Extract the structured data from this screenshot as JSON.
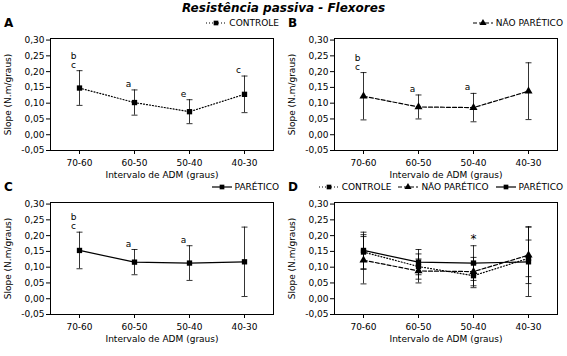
{
  "title": "Resistência passiva - Flexores",
  "chart_data": [
    {
      "type": "line",
      "title": "A",
      "categories": [
        "70-60",
        "60-50",
        "50-40",
        "40-30"
      ],
      "xlabel": "Intervalo de ADM (graus)",
      "ylabel": "Slope (N.m/graus)",
      "ylim": [
        -0.05,
        0.305
      ],
      "yticks": [
        {
          "value": -0.05,
          "label": "-0,05"
        },
        {
          "value": 0.0,
          "label": "0,00"
        },
        {
          "value": 0.05,
          "label": "0,05"
        },
        {
          "value": 0.1,
          "label": "0,10"
        },
        {
          "value": 0.15,
          "label": "0,15"
        },
        {
          "value": 0.2,
          "label": "0,20"
        },
        {
          "value": 0.25,
          "label": "0,25"
        },
        {
          "value": 0.3,
          "label": "0,30"
        }
      ],
      "legend": "right",
      "series": [
        {
          "name": "CONTROLE",
          "color": "black",
          "line_style": "dotted",
          "marker": "square",
          "values": [
            0.148,
            0.102,
            0.073,
            0.128
          ],
          "errors": [
            0.055,
            0.04,
            0.038,
            0.058
          ],
          "point_labels": [
            "b\nc",
            "a",
            "e",
            "c"
          ]
        }
      ]
    },
    {
      "type": "line",
      "title": "B",
      "categories": [
        "70-60",
        "60-50",
        "50-40",
        "40-30"
      ],
      "xlabel": "Intervalo de ADM (graus)",
      "ylabel": "Slope (N.m/graus)",
      "ylim": [
        -0.05,
        0.305
      ],
      "yticks": [
        {
          "value": -0.05,
          "label": "-0,05"
        },
        {
          "value": 0.0,
          "label": "0,00"
        },
        {
          "value": 0.05,
          "label": "0,05"
        },
        {
          "value": 0.1,
          "label": "0,10"
        },
        {
          "value": 0.15,
          "label": "0,15"
        },
        {
          "value": 0.2,
          "label": "0,20"
        },
        {
          "value": 0.25,
          "label": "0,25"
        },
        {
          "value": 0.3,
          "label": "0,30"
        }
      ],
      "legend": "right",
      "series": [
        {
          "name": "NÃO PARÉTICO",
          "color": "black",
          "line_style": "dashed",
          "marker": "triangle",
          "values": [
            0.122,
            0.088,
            0.086,
            0.138
          ],
          "errors": [
            0.075,
            0.038,
            0.045,
            0.09
          ],
          "point_labels": [
            "b\nc",
            "a",
            "a",
            null
          ]
        }
      ]
    },
    {
      "type": "line",
      "title": "C",
      "categories": [
        "70-60",
        "60-50",
        "50-40",
        "40-30"
      ],
      "xlabel": "Intervalo de ADM (graus)",
      "ylabel": "Slope (N.m/graus)",
      "ylim": [
        -0.05,
        0.305
      ],
      "yticks": [
        {
          "value": -0.05,
          "label": "-0,05"
        },
        {
          "value": 0.0,
          "label": "0,00"
        },
        {
          "value": 0.05,
          "label": "0,05"
        },
        {
          "value": 0.1,
          "label": "0,10"
        },
        {
          "value": 0.15,
          "label": "0,15"
        },
        {
          "value": 0.2,
          "label": "0,20"
        },
        {
          "value": 0.25,
          "label": "0,25"
        },
        {
          "value": 0.3,
          "label": "0,30"
        }
      ],
      "legend": "right",
      "series": [
        {
          "name": "PARÉTICO",
          "color": "black",
          "line_style": "solid",
          "marker": "square",
          "values": [
            0.153,
            0.116,
            0.113,
            0.117
          ],
          "errors": [
            0.058,
            0.04,
            0.055,
            0.11
          ],
          "point_labels": [
            "b\nc",
            "a",
            "a",
            null
          ]
        }
      ]
    },
    {
      "type": "line",
      "title": "D",
      "categories": [
        "70-60",
        "60-50",
        "50-40",
        "40-30"
      ],
      "xlabel": "Intervalo de ADM (graus)",
      "ylabel": "Slope (N.m/graus)",
      "ylim": [
        -0.05,
        0.305
      ],
      "yticks": [
        {
          "value": -0.05,
          "label": "-0,05"
        },
        {
          "value": 0.0,
          "label": "0,00"
        },
        {
          "value": 0.05,
          "label": "0,05"
        },
        {
          "value": 0.1,
          "label": "0,10"
        },
        {
          "value": 0.15,
          "label": "0,15"
        },
        {
          "value": 0.2,
          "label": "0,20"
        },
        {
          "value": 0.25,
          "label": "0,25"
        },
        {
          "value": 0.3,
          "label": "0,30"
        }
      ],
      "legend": "upper right",
      "series": [
        {
          "name": "CONTROLE",
          "color": "black",
          "line_style": "dotted",
          "marker": "square",
          "values": [
            0.148,
            0.102,
            0.073,
            0.128
          ],
          "errors": [
            0.055,
            0.04,
            0.038,
            0.058
          ]
        },
        {
          "name": "NÃO PARÉTICO",
          "color": "black",
          "line_style": "dashed",
          "marker": "triangle",
          "values": [
            0.122,
            0.088,
            0.086,
            0.138
          ],
          "errors": [
            0.075,
            0.038,
            0.045,
            0.09
          ]
        },
        {
          "name": "PARÉTICO",
          "color": "black",
          "line_style": "solid",
          "marker": "square",
          "values": [
            0.153,
            0.116,
            0.113,
            0.117
          ],
          "errors": [
            0.058,
            0.04,
            0.055,
            0.11
          ]
        }
      ],
      "annotations": [
        {
          "category": "50-40",
          "text": "*"
        }
      ]
    }
  ]
}
